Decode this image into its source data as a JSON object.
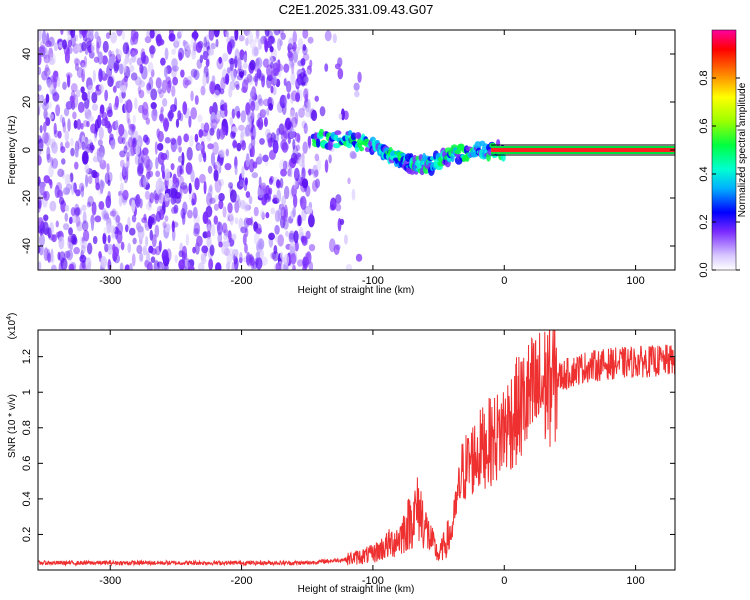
{
  "chart_data": [
    {
      "type": "heatmap",
      "title": "C2E1.2025.331.09.43.G07",
      "xlabel": "Height of straight line (km)",
      "ylabel": "Frequency (Hz)",
      "xlim": [
        -355,
        130
      ],
      "ylim": [
        -50,
        50
      ],
      "x_ticks": [
        -300,
        -200,
        -100,
        0,
        100
      ],
      "y_ticks": [
        -40,
        -20,
        0,
        20,
        40
      ],
      "colorbar": {
        "label": "Normalized spectral amplitude",
        "ticks": [
          0.0,
          0.2,
          0.4,
          0.6,
          0.8
        ],
        "range": [
          0,
          1
        ]
      },
      "description_values": {
        "noise_region_x": [
          -355,
          -110
        ],
        "signal_track": [
          {
            "x": -145,
            "y": 4
          },
          {
            "x": -120,
            "y": 5
          },
          {
            "x": -100,
            "y": 2
          },
          {
            "x": -85,
            "y": -2
          },
          {
            "x": -70,
            "y": -6
          },
          {
            "x": -55,
            "y": -6
          },
          {
            "x": -40,
            "y": -2
          },
          {
            "x": -20,
            "y": 0
          },
          {
            "x": 0,
            "y": 0
          },
          {
            "x": 130,
            "y": 0
          }
        ]
      }
    },
    {
      "type": "line",
      "xlabel": "Height of straight line (km)",
      "ylabel": "SNR (10 * v/v)",
      "y_scale_label": "(x10",
      "y_scale_exp": "4",
      "y_scale_close": ")",
      "xlim": [
        -355,
        130
      ],
      "ylim": [
        0,
        1.35
      ],
      "x_ticks": [
        -300,
        -200,
        -100,
        0,
        100
      ],
      "y_ticks": [
        0.2,
        0.4,
        0.6,
        0.8,
        1.0,
        1.2
      ],
      "series": [
        {
          "name": "SNR",
          "color": "#ee3030",
          "points": [
            {
              "x": -355,
              "y": 0.04
            },
            {
              "x": -300,
              "y": 0.04
            },
            {
              "x": -250,
              "y": 0.04
            },
            {
              "x": -200,
              "y": 0.04
            },
            {
              "x": -150,
              "y": 0.04
            },
            {
              "x": -120,
              "y": 0.06
            },
            {
              "x": -100,
              "y": 0.09
            },
            {
              "x": -80,
              "y": 0.18
            },
            {
              "x": -65,
              "y": 0.35
            },
            {
              "x": -58,
              "y": 0.2
            },
            {
              "x": -50,
              "y": 0.08
            },
            {
              "x": -40,
              "y": 0.22
            },
            {
              "x": -32,
              "y": 0.55
            },
            {
              "x": -25,
              "y": 0.62
            },
            {
              "x": -15,
              "y": 0.7
            },
            {
              "x": -5,
              "y": 0.75
            },
            {
              "x": 5,
              "y": 0.85
            },
            {
              "x": 20,
              "y": 0.98
            },
            {
              "x": 40,
              "y": 1.08
            },
            {
              "x": 60,
              "y": 1.14
            },
            {
              "x": 80,
              "y": 1.16
            },
            {
              "x": 100,
              "y": 1.17
            },
            {
              "x": 130,
              "y": 1.18
            }
          ]
        }
      ]
    }
  ]
}
